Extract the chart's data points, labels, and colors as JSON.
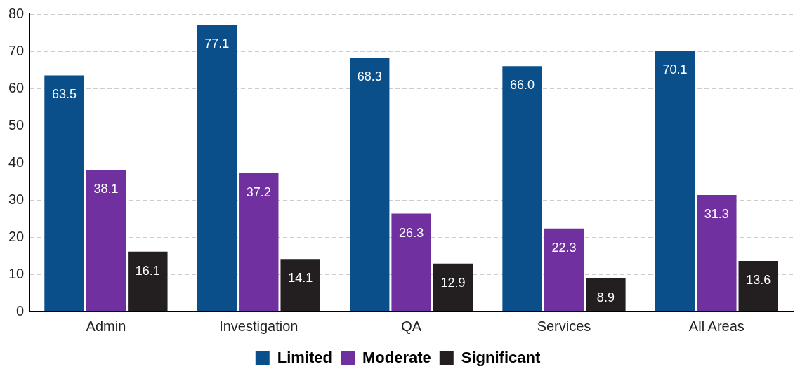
{
  "chart_data": {
    "type": "bar",
    "categories": [
      "Admin",
      "Investigation",
      "QA",
      "Services",
      "All Areas"
    ],
    "series": [
      {
        "name": "Limited",
        "color": "#0b4f8a",
        "values": [
          63.5,
          77.1,
          68.3,
          66.0,
          70.1
        ],
        "value_labels": [
          "63.5",
          "77.1",
          "68.3",
          "66.0",
          "70.1"
        ]
      },
      {
        "name": "Moderate",
        "color": "#7030a0",
        "values": [
          38.1,
          37.2,
          26.3,
          22.3,
          31.3
        ],
        "value_labels": [
          "38.1",
          "37.2",
          "26.3",
          "22.3",
          "31.3"
        ]
      },
      {
        "name": "Significant",
        "color": "#231f20",
        "values": [
          16.1,
          14.1,
          12.9,
          8.9,
          13.6
        ],
        "value_labels": [
          "16.1",
          "14.1",
          "12.9",
          "8.9",
          "13.6"
        ]
      }
    ],
    "ylim": [
      0,
      80
    ],
    "yticks": [
      0,
      10,
      20,
      30,
      40,
      50,
      60,
      70,
      80
    ],
    "grid": "y",
    "legend": "bottom"
  }
}
